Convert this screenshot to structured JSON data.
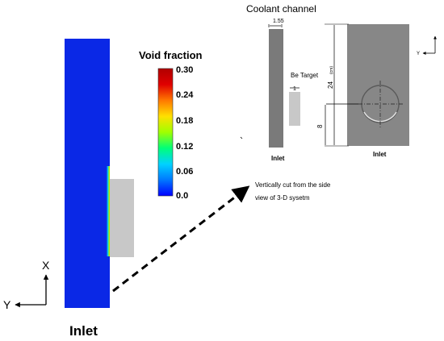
{
  "left_panel": {
    "x_axis_label": "X",
    "y_axis_label": "Y",
    "inlet_label": "Inlet"
  },
  "colorbar": {
    "title": "Void fraction",
    "ticks": [
      "0.30",
      "0.24",
      "0.18",
      "0.12",
      "0.06",
      "0.0"
    ],
    "colors": [
      "#0000ff",
      "#0078ff",
      "#00d2ff",
      "#00ff78",
      "#a0ff00",
      "#ffe000",
      "#ff7800",
      "#e00000",
      "#b00000"
    ]
  },
  "right_panel": {
    "title": "Coolant channel",
    "width_dim": "1.55",
    "target_label": "Be Target",
    "target_dim": "1",
    "height_dim": "24",
    "height_unit": "(cm)",
    "offset_dim": "8",
    "side_inlet_label": "Inlet",
    "front_inlet_label": "Inlet",
    "front_axis_label": "Y",
    "caption_line1": "Vertically cut from the side",
    "caption_line2": "view of 3-D sysetm"
  },
  "colors": {
    "flow_blue": "#0a28e6",
    "target_gray": "#c8c8c8",
    "channel_gray": "#7a7a7a",
    "front_gray": "#878787"
  }
}
